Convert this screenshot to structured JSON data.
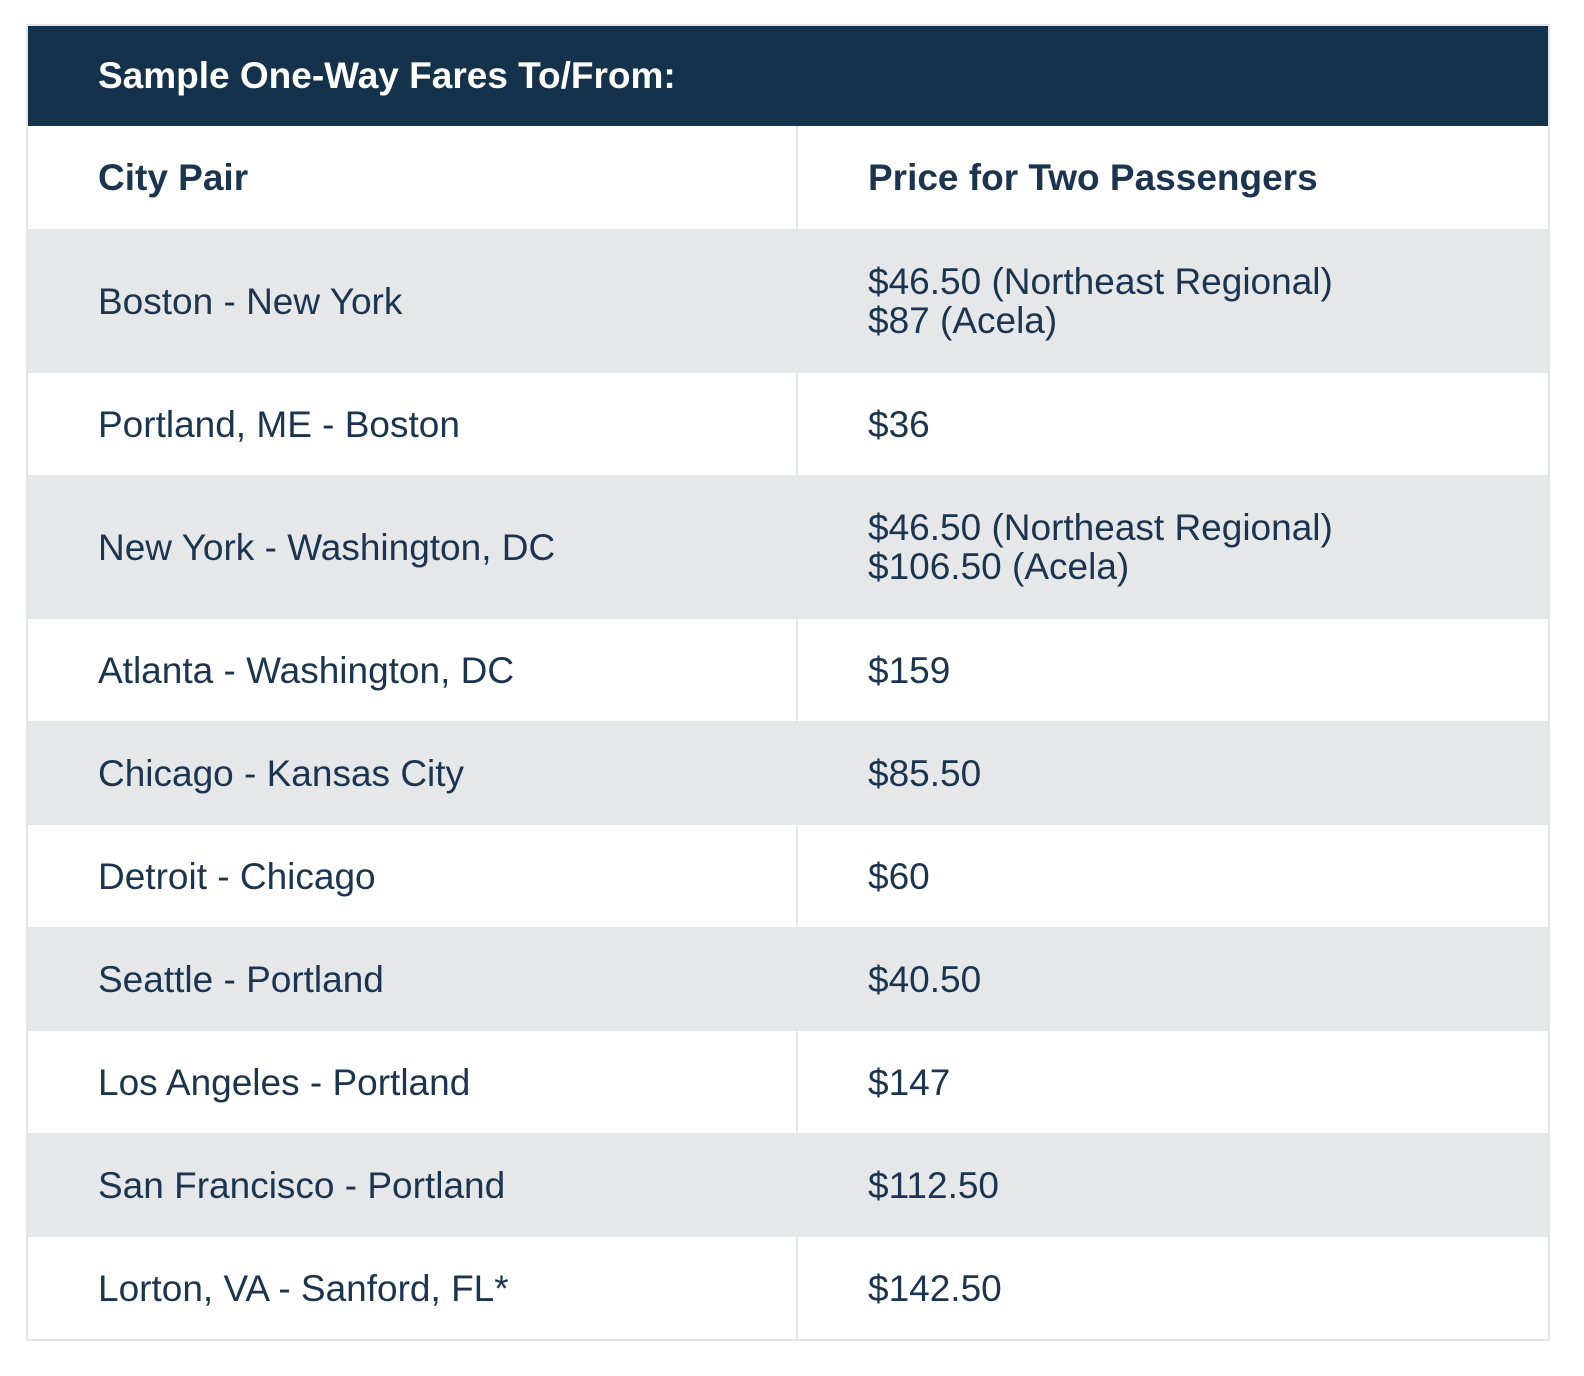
{
  "table": {
    "title": "Sample One-Way Fares To/From:",
    "columns": [
      "City Pair",
      "Price for Two Passengers"
    ],
    "rows": [
      {
        "city": "Boston - New York",
        "price": [
          "$46.50 (Northeast Regional)",
          "$87 (Acela)"
        ]
      },
      {
        "city": "Portland, ME - Boston",
        "price": [
          "$36"
        ]
      },
      {
        "city": "New York - Washington, DC",
        "price": [
          "$46.50 (Northeast Regional)",
          "$106.50 (Acela)"
        ]
      },
      {
        "city": "Atlanta - Washington, DC",
        "price": [
          "$159"
        ]
      },
      {
        "city": "Chicago - Kansas City",
        "price": [
          "$85.50"
        ]
      },
      {
        "city": "Detroit - Chicago",
        "price": [
          "$60"
        ]
      },
      {
        "city": "Seattle - Portland",
        "price": [
          "$40.50"
        ]
      },
      {
        "city": "Los Angeles - Portland",
        "price": [
          "$147"
        ]
      },
      {
        "city": "San Francisco - Portland",
        "price": [
          "$112.50"
        ]
      },
      {
        "city": "Lorton, VA - Sanford, FL*",
        "price": [
          "$142.50"
        ]
      }
    ]
  }
}
